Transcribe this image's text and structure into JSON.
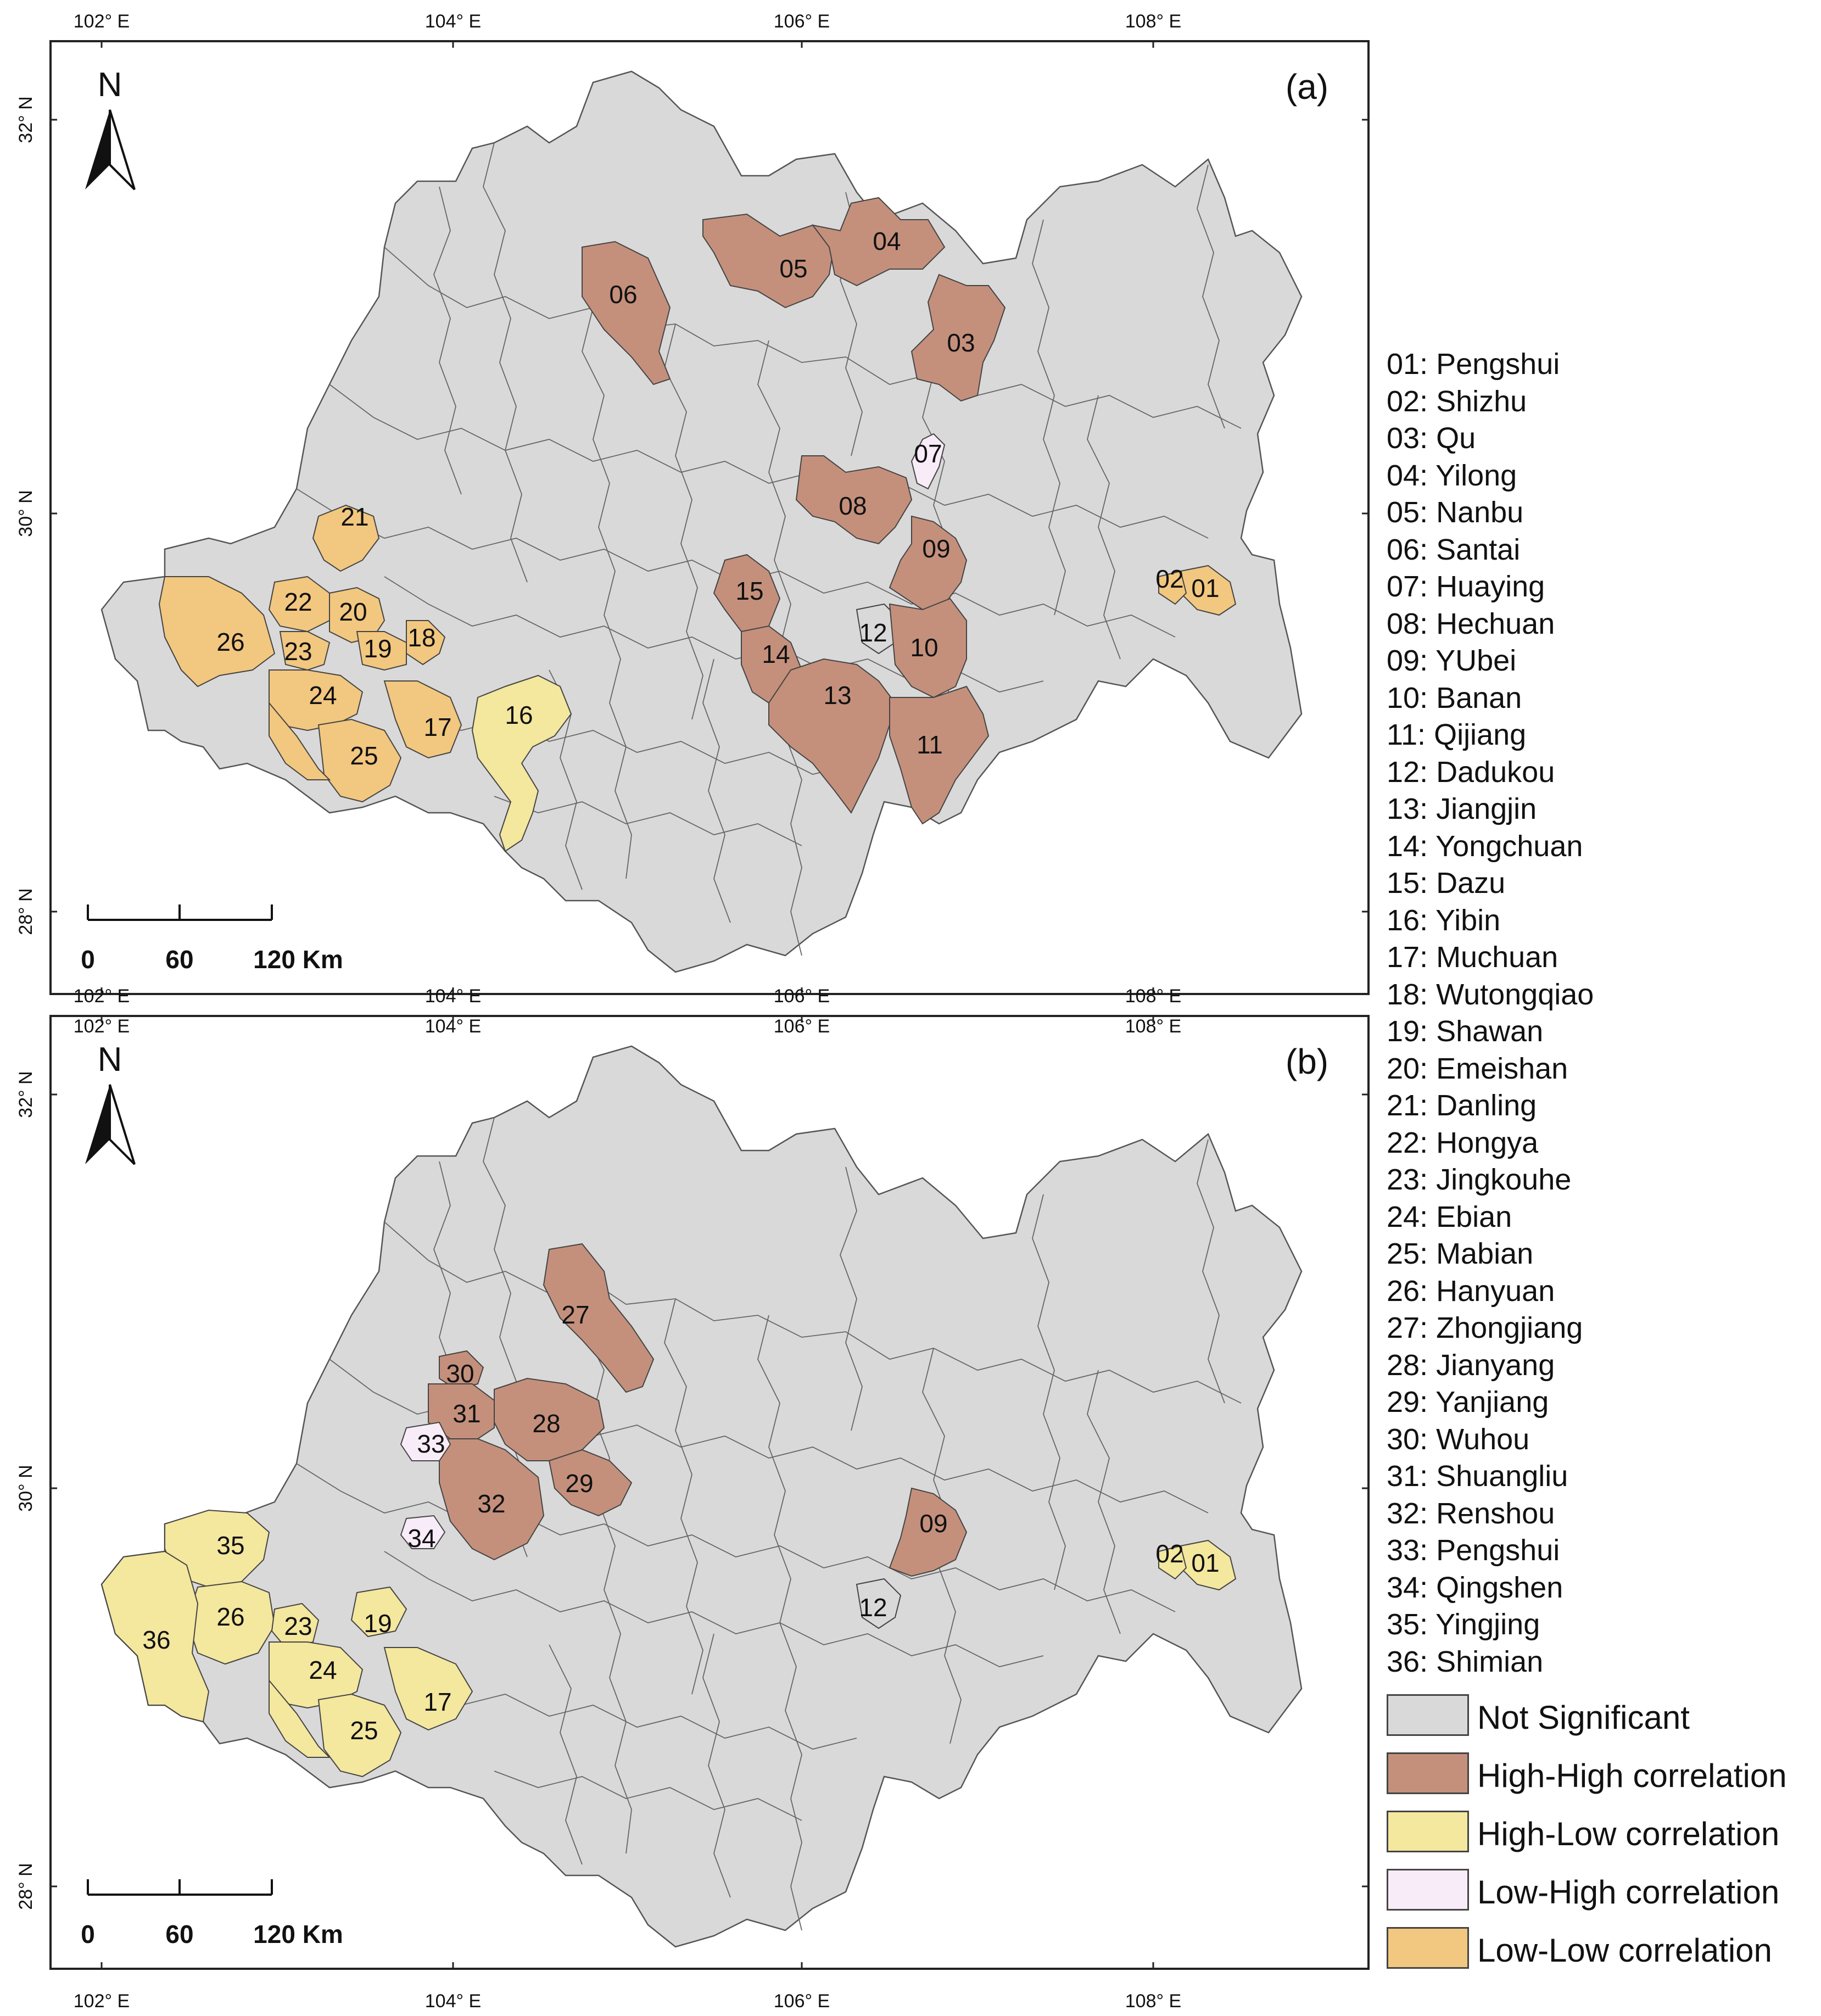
{
  "panels": [
    {
      "label": "(a)",
      "north": "N",
      "lat_labels": [
        "32° N",
        "30° N",
        "28° N"
      ],
      "lon_labels": [
        "102° E",
        "104° E",
        "106° E",
        "108° E"
      ],
      "scale": {
        "t0": "0",
        "t1": "60",
        "t2": "120 Km"
      },
      "regions": [
        {
          "id": "01",
          "class": "LL"
        },
        {
          "id": "02",
          "class": "LL"
        },
        {
          "id": "03",
          "class": "HH"
        },
        {
          "id": "04",
          "class": "HH"
        },
        {
          "id": "05",
          "class": "HH"
        },
        {
          "id": "06",
          "class": "HH"
        },
        {
          "id": "07",
          "class": "LH"
        },
        {
          "id": "08",
          "class": "HH"
        },
        {
          "id": "09",
          "class": "HH"
        },
        {
          "id": "10",
          "class": "HH"
        },
        {
          "id": "11",
          "class": "HH"
        },
        {
          "id": "12",
          "class": "NS"
        },
        {
          "id": "13",
          "class": "HH"
        },
        {
          "id": "14",
          "class": "HH"
        },
        {
          "id": "15",
          "class": "HH"
        },
        {
          "id": "16",
          "class": "HL"
        },
        {
          "id": "17",
          "class": "LL"
        },
        {
          "id": "18",
          "class": "LL"
        },
        {
          "id": "19",
          "class": "LL"
        },
        {
          "id": "20",
          "class": "LL"
        },
        {
          "id": "21",
          "class": "LL"
        },
        {
          "id": "22",
          "class": "LL"
        },
        {
          "id": "23",
          "class": "LL"
        },
        {
          "id": "24",
          "class": "LL"
        },
        {
          "id": "25",
          "class": "LL"
        },
        {
          "id": "26",
          "class": "LL"
        }
      ]
    },
    {
      "label": "(b)",
      "north": "N",
      "lat_labels": [
        "32° N",
        "30° N",
        "28° N"
      ],
      "lon_labels": [
        "102° E",
        "104° E",
        "106° E",
        "108° E"
      ],
      "scale": {
        "t0": "0",
        "t1": "60",
        "t2": "120 Km"
      },
      "regions": [
        {
          "id": "01",
          "class": "HL"
        },
        {
          "id": "02",
          "class": "HL"
        },
        {
          "id": "09",
          "class": "HH"
        },
        {
          "id": "12",
          "class": "NS"
        },
        {
          "id": "17",
          "class": "HL"
        },
        {
          "id": "19",
          "class": "HL"
        },
        {
          "id": "23",
          "class": "HL"
        },
        {
          "id": "24",
          "class": "HL"
        },
        {
          "id": "25",
          "class": "HL"
        },
        {
          "id": "26",
          "class": "HL"
        },
        {
          "id": "27",
          "class": "HH"
        },
        {
          "id": "28",
          "class": "HH"
        },
        {
          "id": "29",
          "class": "HH"
        },
        {
          "id": "30",
          "class": "HH"
        },
        {
          "id": "31",
          "class": "HH"
        },
        {
          "id": "32",
          "class": "HH"
        },
        {
          "id": "33",
          "class": "LH"
        },
        {
          "id": "34",
          "class": "LH"
        },
        {
          "id": "35",
          "class": "HL"
        },
        {
          "id": "36",
          "class": "HL"
        }
      ]
    }
  ],
  "county_legend": [
    "01: Pengshui",
    "02: Shizhu",
    "03: Qu",
    "04: Yilong",
    "05: Nanbu",
    "06: Santai",
    "07: Huaying",
    "08: Hechuan",
    "09: YUbei",
    "10: Banan",
    "11: Qijiang",
    "12: Dadukou",
    "13: Jiangjin",
    "14: Yongchuan",
    "15: Dazu",
    "16: Yibin",
    "17: Muchuan",
    "18: Wutongqiao",
    "19: Shawan",
    "20: Emeishan",
    "21: Danling",
    "22: Hongya",
    "23: Jingkouhe",
    "24: Ebian",
    "25: Mabian",
    "26: Hanyuan",
    "27: Zhongjiang",
    "28: Jianyang",
    "29: Yanjiang",
    "30: Wuhou",
    "31: Shuangliu",
    "32: Renshou",
    "33: Pengshui",
    "34: Qingshen",
    "35: Yingjing",
    "36: Shimian"
  ],
  "class_legend": [
    {
      "key": "NS",
      "label": "Not Significant",
      "color": "#d9d9d9"
    },
    {
      "key": "HH",
      "label": "High-High correlation",
      "color": "#c4907c"
    },
    {
      "key": "HL",
      "label": "High-Low correlation",
      "color": "#f4e79e"
    },
    {
      "key": "LH",
      "label": "Low-High correlation",
      "color": "#f9ecf9"
    },
    {
      "key": "LL",
      "label": "Low-Low correlation",
      "color": "#f2c77f"
    }
  ]
}
